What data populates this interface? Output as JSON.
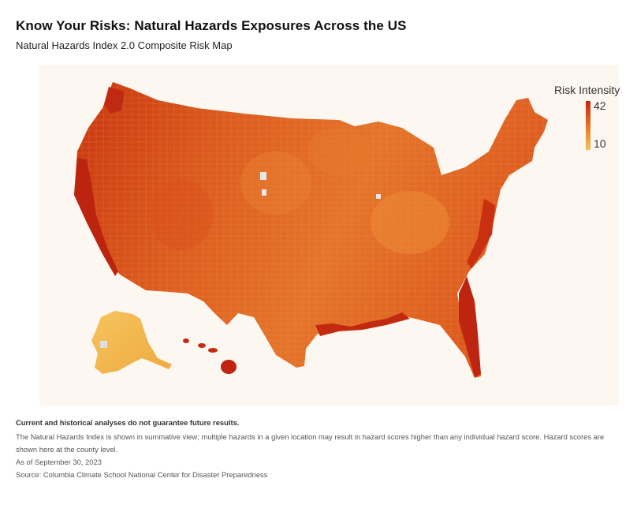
{
  "header": {
    "title": "Know Your Risks: Natural Hazards Exposures Across the US",
    "subtitle": "Natural Hazards Index 2.0 Composite Risk Map"
  },
  "legend": {
    "title": "Risk Intensity",
    "max_label": "42",
    "min_label": "10",
    "colors": [
      "#c2270f",
      "#e5731f",
      "#f5c05a"
    ]
  },
  "map": {
    "regions": [
      "contiguous-us",
      "alaska",
      "hawaii"
    ],
    "colors": {
      "high": "#c4290f",
      "mid": "#e6762a",
      "low": "#f4b64f",
      "background": "#fdf7f1",
      "no_data": "#e5e5e5"
    }
  },
  "notes": {
    "disclaimer": "Current and historical analyses do not guarantee future results.",
    "description": "The Natural Hazards Index is shown in summative view; multiple hazards in a given location may result in hazard scores higher than any individual hazard score. Hazard scores are shown here at the county level.",
    "as_of": "As of September 30, 2023",
    "source": "Source: Columbia Climate School National Center for Disaster Preparedness"
  }
}
